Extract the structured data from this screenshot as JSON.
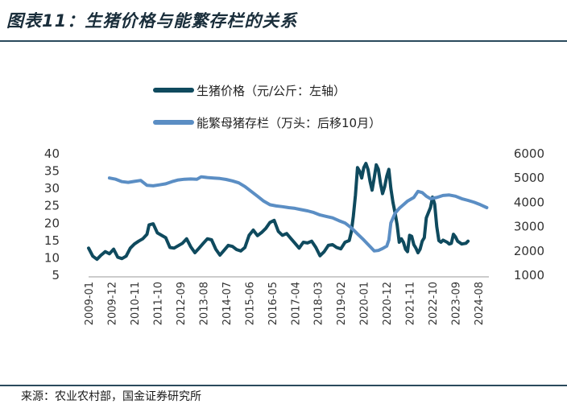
{
  "figure": {
    "title": "图表11：生猪价格与能繁存栏的关系",
    "source": "来源：农业农村部，国金证券研究所"
  },
  "chart_data": {
    "type": "line",
    "title": "图表11：生猪价格与能繁存栏的关系",
    "legend_position": "top-center",
    "grid": false,
    "x_tick_labels": [
      "2009-01",
      "2009-12",
      "2010-11",
      "2011-10",
      "2012-09",
      "2013-08",
      "2014-07",
      "2015-06",
      "2016-05",
      "2017-04",
      "2018-03",
      "2019-02",
      "2020-01",
      "2020-12",
      "2021-11",
      "2022-10",
      "2023-09",
      "2024-08"
    ],
    "x_range": [
      "2009-01",
      "2025-01"
    ],
    "y_left": {
      "min": 5,
      "max": 40,
      "ticks": [
        5,
        10,
        15,
        20,
        25,
        30,
        35,
        40
      ]
    },
    "y_right": {
      "min": 1000,
      "max": 6000,
      "ticks": [
        1000,
        2000,
        3000,
        4000,
        5000,
        6000
      ]
    },
    "series": [
      {
        "name": "生猪价格（元/公斤：左轴）",
        "axis": "left",
        "color": "#0f4a5e",
        "points": [
          [
            "2009-01",
            12.8
          ],
          [
            "2009-03",
            10.5
          ],
          [
            "2009-05",
            9.6
          ],
          [
            "2009-07",
            10.8
          ],
          [
            "2009-09",
            11.8
          ],
          [
            "2009-11",
            11.2
          ],
          [
            "2010-01",
            12.5
          ],
          [
            "2010-03",
            10.2
          ],
          [
            "2010-05",
            9.8
          ],
          [
            "2010-07",
            10.5
          ],
          [
            "2010-09",
            12.8
          ],
          [
            "2010-11",
            14.0
          ],
          [
            "2011-01",
            14.8
          ],
          [
            "2011-03",
            15.5
          ],
          [
            "2011-05",
            16.8
          ],
          [
            "2011-06",
            19.5
          ],
          [
            "2011-08",
            19.8
          ],
          [
            "2011-10",
            17.2
          ],
          [
            "2011-12",
            16.5
          ],
          [
            "2012-02",
            15.8
          ],
          [
            "2012-04",
            13.0
          ],
          [
            "2012-06",
            12.8
          ],
          [
            "2012-08",
            13.5
          ],
          [
            "2012-10",
            14.2
          ],
          [
            "2012-12",
            15.5
          ],
          [
            "2013-02",
            13.2
          ],
          [
            "2013-04",
            11.5
          ],
          [
            "2013-06",
            12.8
          ],
          [
            "2013-08",
            14.2
          ],
          [
            "2013-10",
            15.5
          ],
          [
            "2013-12",
            15.2
          ],
          [
            "2014-02",
            12.5
          ],
          [
            "2014-04",
            10.8
          ],
          [
            "2014-06",
            12.2
          ],
          [
            "2014-08",
            13.6
          ],
          [
            "2014-10",
            13.3
          ],
          [
            "2014-12",
            12.4
          ],
          [
            "2015-02",
            12.0
          ],
          [
            "2015-04",
            13.0
          ],
          [
            "2015-06",
            16.5
          ],
          [
            "2015-08",
            18.0
          ],
          [
            "2015-10",
            16.4
          ],
          [
            "2015-12",
            17.3
          ],
          [
            "2016-02",
            18.5
          ],
          [
            "2016-04",
            20.2
          ],
          [
            "2016-06",
            20.8
          ],
          [
            "2016-08",
            17.6
          ],
          [
            "2016-10",
            16.5
          ],
          [
            "2016-12",
            17.0
          ],
          [
            "2017-02",
            15.6
          ],
          [
            "2017-04",
            14.2
          ],
          [
            "2017-06",
            12.8
          ],
          [
            "2017-08",
            14.5
          ],
          [
            "2017-10",
            14.3
          ],
          [
            "2017-12",
            14.8
          ],
          [
            "2018-02",
            13.0
          ],
          [
            "2018-04",
            10.6
          ],
          [
            "2018-06",
            11.8
          ],
          [
            "2018-08",
            13.6
          ],
          [
            "2018-10",
            13.8
          ],
          [
            "2018-12",
            13.0
          ],
          [
            "2019-02",
            12.6
          ],
          [
            "2019-04",
            14.5
          ],
          [
            "2019-06",
            15.0
          ],
          [
            "2019-07",
            17.5
          ],
          [
            "2019-08",
            22.0
          ],
          [
            "2019-09",
            28.0
          ],
          [
            "2019-10",
            36.0
          ],
          [
            "2019-11",
            35.0
          ],
          [
            "2019-12",
            33.0
          ],
          [
            "2020-01",
            36.0
          ],
          [
            "2020-02",
            37.2
          ],
          [
            "2020-03",
            35.5
          ],
          [
            "2020-04",
            32.0
          ],
          [
            "2020-05",
            29.5
          ],
          [
            "2020-06",
            33.0
          ],
          [
            "2020-07",
            36.8
          ],
          [
            "2020-08",
            35.5
          ],
          [
            "2020-09",
            31.5
          ],
          [
            "2020-10",
            28.5
          ],
          [
            "2020-11",
            30.5
          ],
          [
            "2020-12",
            33.5
          ],
          [
            "2021-01",
            35.5
          ],
          [
            "2021-02",
            30.0
          ],
          [
            "2021-03",
            26.0
          ],
          [
            "2021-04",
            23.0
          ],
          [
            "2021-05",
            19.5
          ],
          [
            "2021-06",
            14.5
          ],
          [
            "2021-07",
            15.5
          ],
          [
            "2021-08",
            14.5
          ],
          [
            "2021-09",
            12.5
          ],
          [
            "2021-10",
            11.8
          ],
          [
            "2021-11",
            16.5
          ],
          [
            "2021-12",
            16.2
          ],
          [
            "2022-01",
            13.8
          ],
          [
            "2022-02",
            12.8
          ],
          [
            "2022-03",
            11.5
          ],
          [
            "2022-04",
            12.5
          ],
          [
            "2022-05",
            14.8
          ],
          [
            "2022-06",
            15.8
          ],
          [
            "2022-07",
            21.5
          ],
          [
            "2022-08",
            23.0
          ],
          [
            "2022-09",
            24.5
          ],
          [
            "2022-10",
            27.5
          ],
          [
            "2022-11",
            25.5
          ],
          [
            "2022-12",
            19.0
          ],
          [
            "2023-01",
            15.0
          ],
          [
            "2023-02",
            14.5
          ],
          [
            "2023-03",
            15.1
          ],
          [
            "2023-05",
            14.5
          ],
          [
            "2023-06",
            14.0
          ],
          [
            "2023-07",
            14.2
          ],
          [
            "2023-08",
            16.8
          ],
          [
            "2023-09",
            16.0
          ],
          [
            "2023-10",
            14.8
          ],
          [
            "2023-12",
            14.0
          ],
          [
            "2024-02",
            14.2
          ],
          [
            "2024-03",
            14.8
          ]
        ]
      },
      {
        "name": "能繁母猪存栏（万头：后移10月）",
        "axis": "right",
        "color": "#5b8ec4",
        "points": [
          [
            "2009-11",
            5000
          ],
          [
            "2010-02",
            4950
          ],
          [
            "2010-05",
            4850
          ],
          [
            "2010-08",
            4820
          ],
          [
            "2010-11",
            4860
          ],
          [
            "2011-02",
            4900
          ],
          [
            "2011-05",
            4700
          ],
          [
            "2011-08",
            4680
          ],
          [
            "2011-11",
            4720
          ],
          [
            "2012-02",
            4760
          ],
          [
            "2012-05",
            4850
          ],
          [
            "2012-08",
            4920
          ],
          [
            "2012-11",
            4950
          ],
          [
            "2013-02",
            4960
          ],
          [
            "2013-05",
            4950
          ],
          [
            "2013-07",
            5050
          ],
          [
            "2013-10",
            5020
          ],
          [
            "2014-01",
            5000
          ],
          [
            "2014-04",
            4980
          ],
          [
            "2014-07",
            4940
          ],
          [
            "2014-10",
            4880
          ],
          [
            "2015-01",
            4800
          ],
          [
            "2015-04",
            4650
          ],
          [
            "2015-07",
            4450
          ],
          [
            "2015-10",
            4250
          ],
          [
            "2016-01",
            4050
          ],
          [
            "2016-04",
            3900
          ],
          [
            "2016-07",
            3850
          ],
          [
            "2016-10",
            3820
          ],
          [
            "2017-01",
            3780
          ],
          [
            "2017-04",
            3750
          ],
          [
            "2017-07",
            3700
          ],
          [
            "2017-10",
            3650
          ],
          [
            "2018-01",
            3580
          ],
          [
            "2018-04",
            3480
          ],
          [
            "2018-07",
            3420
          ],
          [
            "2018-10",
            3360
          ],
          [
            "2019-01",
            3250
          ],
          [
            "2019-04",
            3150
          ],
          [
            "2019-07",
            2950
          ],
          [
            "2019-10",
            2700
          ],
          [
            "2020-01",
            2450
          ],
          [
            "2020-04",
            2180
          ],
          [
            "2020-06",
            2000
          ],
          [
            "2020-08",
            2020
          ],
          [
            "2020-10",
            2100
          ],
          [
            "2020-12",
            2200
          ],
          [
            "2021-01",
            2450
          ],
          [
            "2021-02",
            3150
          ],
          [
            "2021-04",
            3550
          ],
          [
            "2021-06",
            3750
          ],
          [
            "2021-08",
            3900
          ],
          [
            "2021-10",
            4050
          ],
          [
            "2022-01",
            4200
          ],
          [
            "2022-03",
            4450
          ],
          [
            "2022-05",
            4400
          ],
          [
            "2022-07",
            4250
          ],
          [
            "2022-09",
            4150
          ],
          [
            "2022-12",
            4200
          ],
          [
            "2023-03",
            4280
          ],
          [
            "2023-06",
            4300
          ],
          [
            "2023-09",
            4250
          ],
          [
            "2023-12",
            4150
          ],
          [
            "2024-03",
            4080
          ],
          [
            "2024-06",
            4000
          ],
          [
            "2024-09",
            3900
          ],
          [
            "2024-12",
            3780
          ]
        ]
      }
    ]
  }
}
